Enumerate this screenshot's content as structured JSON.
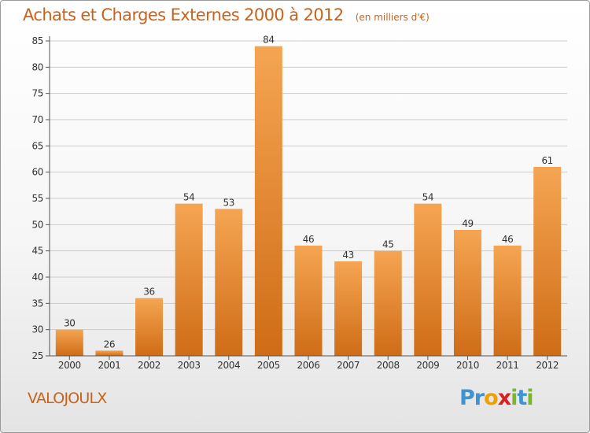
{
  "header": {
    "title": "Achats et Charges Externes 2000 à 2012",
    "subtitle": "(en milliers d'€)"
  },
  "footer": {
    "commune": "VALOJOULX",
    "logo": {
      "letters": [
        "P",
        "r",
        "o",
        "x",
        "i",
        "t",
        "i"
      ],
      "colors": [
        "#3f93d3",
        "#3f93d3",
        "#f0a000",
        "#d82020",
        "#79b82b",
        "#3f93d3",
        "#79b82b"
      ]
    }
  },
  "colors": {
    "accent": "#c9631b",
    "bar_top": "#f5a552",
    "bar_bottom": "#cf6c17",
    "grid": "#cccccc",
    "axis": "#555555"
  },
  "chart_data": {
    "type": "bar",
    "categories": [
      "2000",
      "2001",
      "2002",
      "2003",
      "2004",
      "2005",
      "2006",
      "2007",
      "2008",
      "2009",
      "2010",
      "2011",
      "2012"
    ],
    "values": [
      30,
      26,
      36,
      54,
      53,
      84,
      46,
      43,
      45,
      54,
      49,
      46,
      61
    ],
    "ylim": [
      25,
      85
    ],
    "yticks": [
      25,
      30,
      35,
      40,
      45,
      50,
      55,
      60,
      65,
      70,
      75,
      80,
      85
    ],
    "grid": true,
    "data_labels": true
  }
}
